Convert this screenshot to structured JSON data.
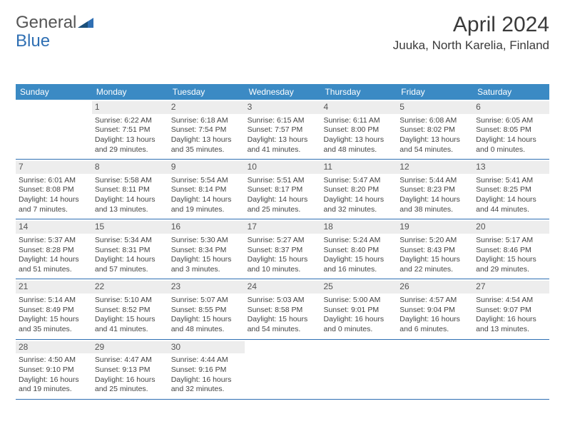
{
  "logo": {
    "part1": "General",
    "part2": "Blue"
  },
  "title": "April 2024",
  "location": "Juuka, North Karelia, Finland",
  "colors": {
    "header_bg": "#3b8ac4",
    "header_text": "#ffffff",
    "row_border": "#2f6fb3",
    "daynum_bg": "#ededed",
    "text": "#444444",
    "logo_blue": "#2f6fb3"
  },
  "weekdays": [
    "Sunday",
    "Monday",
    "Tuesday",
    "Wednesday",
    "Thursday",
    "Friday",
    "Saturday"
  ],
  "weeks": [
    [
      {
        "day": null
      },
      {
        "day": 1,
        "sunrise": "6:22 AM",
        "sunset": "7:51 PM",
        "daylight": "13 hours and 29 minutes."
      },
      {
        "day": 2,
        "sunrise": "6:18 AM",
        "sunset": "7:54 PM",
        "daylight": "13 hours and 35 minutes."
      },
      {
        "day": 3,
        "sunrise": "6:15 AM",
        "sunset": "7:57 PM",
        "daylight": "13 hours and 41 minutes."
      },
      {
        "day": 4,
        "sunrise": "6:11 AM",
        "sunset": "8:00 PM",
        "daylight": "13 hours and 48 minutes."
      },
      {
        "day": 5,
        "sunrise": "6:08 AM",
        "sunset": "8:02 PM",
        "daylight": "13 hours and 54 minutes."
      },
      {
        "day": 6,
        "sunrise": "6:05 AM",
        "sunset": "8:05 PM",
        "daylight": "14 hours and 0 minutes."
      }
    ],
    [
      {
        "day": 7,
        "sunrise": "6:01 AM",
        "sunset": "8:08 PM",
        "daylight": "14 hours and 7 minutes."
      },
      {
        "day": 8,
        "sunrise": "5:58 AM",
        "sunset": "8:11 PM",
        "daylight": "14 hours and 13 minutes."
      },
      {
        "day": 9,
        "sunrise": "5:54 AM",
        "sunset": "8:14 PM",
        "daylight": "14 hours and 19 minutes."
      },
      {
        "day": 10,
        "sunrise": "5:51 AM",
        "sunset": "8:17 PM",
        "daylight": "14 hours and 25 minutes."
      },
      {
        "day": 11,
        "sunrise": "5:47 AM",
        "sunset": "8:20 PM",
        "daylight": "14 hours and 32 minutes."
      },
      {
        "day": 12,
        "sunrise": "5:44 AM",
        "sunset": "8:23 PM",
        "daylight": "14 hours and 38 minutes."
      },
      {
        "day": 13,
        "sunrise": "5:41 AM",
        "sunset": "8:25 PM",
        "daylight": "14 hours and 44 minutes."
      }
    ],
    [
      {
        "day": 14,
        "sunrise": "5:37 AM",
        "sunset": "8:28 PM",
        "daylight": "14 hours and 51 minutes."
      },
      {
        "day": 15,
        "sunrise": "5:34 AM",
        "sunset": "8:31 PM",
        "daylight": "14 hours and 57 minutes."
      },
      {
        "day": 16,
        "sunrise": "5:30 AM",
        "sunset": "8:34 PM",
        "daylight": "15 hours and 3 minutes."
      },
      {
        "day": 17,
        "sunrise": "5:27 AM",
        "sunset": "8:37 PM",
        "daylight": "15 hours and 10 minutes."
      },
      {
        "day": 18,
        "sunrise": "5:24 AM",
        "sunset": "8:40 PM",
        "daylight": "15 hours and 16 minutes."
      },
      {
        "day": 19,
        "sunrise": "5:20 AM",
        "sunset": "8:43 PM",
        "daylight": "15 hours and 22 minutes."
      },
      {
        "day": 20,
        "sunrise": "5:17 AM",
        "sunset": "8:46 PM",
        "daylight": "15 hours and 29 minutes."
      }
    ],
    [
      {
        "day": 21,
        "sunrise": "5:14 AM",
        "sunset": "8:49 PM",
        "daylight": "15 hours and 35 minutes."
      },
      {
        "day": 22,
        "sunrise": "5:10 AM",
        "sunset": "8:52 PM",
        "daylight": "15 hours and 41 minutes."
      },
      {
        "day": 23,
        "sunrise": "5:07 AM",
        "sunset": "8:55 PM",
        "daylight": "15 hours and 48 minutes."
      },
      {
        "day": 24,
        "sunrise": "5:03 AM",
        "sunset": "8:58 PM",
        "daylight": "15 hours and 54 minutes."
      },
      {
        "day": 25,
        "sunrise": "5:00 AM",
        "sunset": "9:01 PM",
        "daylight": "16 hours and 0 minutes."
      },
      {
        "day": 26,
        "sunrise": "4:57 AM",
        "sunset": "9:04 PM",
        "daylight": "16 hours and 6 minutes."
      },
      {
        "day": 27,
        "sunrise": "4:54 AM",
        "sunset": "9:07 PM",
        "daylight": "16 hours and 13 minutes."
      }
    ],
    [
      {
        "day": 28,
        "sunrise": "4:50 AM",
        "sunset": "9:10 PM",
        "daylight": "16 hours and 19 minutes."
      },
      {
        "day": 29,
        "sunrise": "4:47 AM",
        "sunset": "9:13 PM",
        "daylight": "16 hours and 25 minutes."
      },
      {
        "day": 30,
        "sunrise": "4:44 AM",
        "sunset": "9:16 PM",
        "daylight": "16 hours and 32 minutes."
      },
      {
        "day": null
      },
      {
        "day": null
      },
      {
        "day": null
      },
      {
        "day": null
      }
    ]
  ],
  "labels": {
    "sunrise": "Sunrise:",
    "sunset": "Sunset:",
    "daylight": "Daylight:"
  }
}
